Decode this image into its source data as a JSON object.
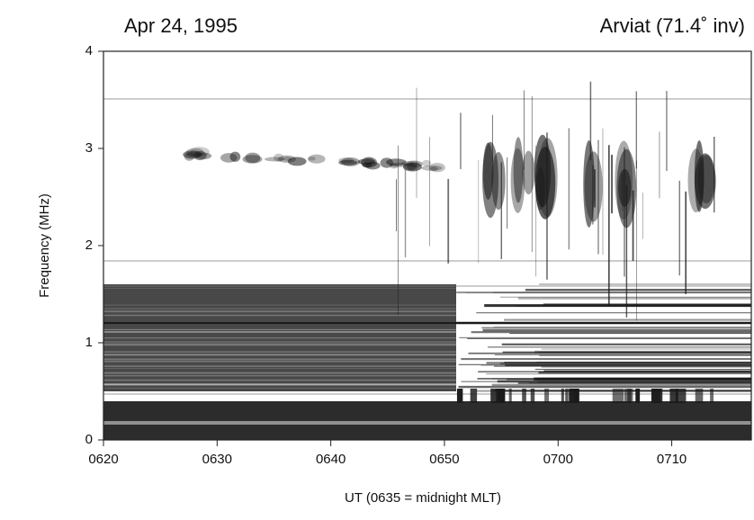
{
  "chart_data": {
    "type": "spectrogram",
    "title": "Apr 24, 1995",
    "subtitle": "Arviat (71.4˚ inv)",
    "x_label": "UT (0635 = midnight MLT)",
    "y_label": "Frequency (MHz)",
    "xlim": [
      380,
      437
    ],
    "xticks": [
      {
        "value": 380,
        "label": "0620"
      },
      {
        "value": 390,
        "label": "0630"
      },
      {
        "value": 400,
        "label": "0640"
      },
      {
        "value": 410,
        "label": "0650"
      },
      {
        "value": 420,
        "label": "0700"
      },
      {
        "value": 430,
        "label": "0710"
      }
    ],
    "ylim": [
      0,
      4
    ],
    "yticks": [
      0,
      1,
      2,
      3,
      4
    ],
    "color": "#1a1a1a"
  }
}
